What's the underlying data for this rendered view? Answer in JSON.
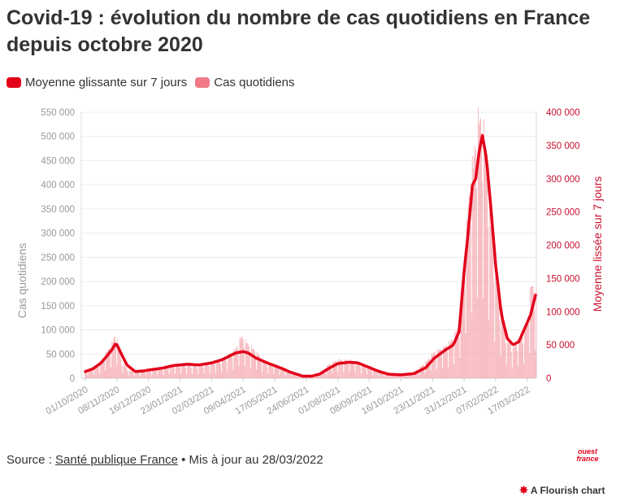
{
  "title": "Covid-19 : évolution du nombre de cas quotidiens en France depuis octobre 2020",
  "legend": {
    "items": [
      {
        "label": "Moyenne glissante sur 7 jours",
        "color": "#e2001a"
      },
      {
        "label": "Cas quotidiens",
        "color": "#f07a86"
      }
    ]
  },
  "footer": {
    "prefix": "Source : ",
    "source": "Santé publique France",
    "suffix": " • Mis à jour au 28/03/2022"
  },
  "brand": {
    "line1": "ouest",
    "line2": "france"
  },
  "flourish": {
    "label": "A Flourish chart"
  },
  "chart_data": {
    "type": "bar",
    "left_axis_label": "Cas quotidiens",
    "right_axis_label": "Moyenne lissée sur 7 jours",
    "y_left_range": [
      0,
      550000
    ],
    "y_left_ticks": [
      "0",
      "50 000",
      "100 000",
      "150 000",
      "200 000",
      "250 000",
      "300 000",
      "350 000",
      "400 000",
      "450 000",
      "500 000",
      "550 000"
    ],
    "y_left_tick_values": [
      0,
      50000,
      100000,
      150000,
      200000,
      250000,
      300000,
      350000,
      400000,
      450000,
      500000,
      550000
    ],
    "y_right_range": [
      0,
      400000
    ],
    "y_right_ticks": [
      "0",
      "50 000",
      "100 000",
      "150 000",
      "200 000",
      "250 000",
      "300 000",
      "350 000",
      "400 000"
    ],
    "y_right_tick_values": [
      0,
      50000,
      100000,
      150000,
      200000,
      250000,
      300000,
      350000,
      400000
    ],
    "x_range": [
      "2020-10-01",
      "2022-03-28"
    ],
    "x_ticks": [
      "01/10/2020",
      "08/11/2020",
      "16/12/2020",
      "23/01/2021",
      "02/03/2021",
      "09/04/2021",
      "17/05/2021",
      "24/06/2021",
      "01/08/2021",
      "08/09/2021",
      "16/10/2021",
      "23/11/2021",
      "31/12/2021",
      "07/02/2022",
      "17/03/2022"
    ],
    "x_tick_dates": [
      "2020-10-01",
      "2020-11-08",
      "2020-12-16",
      "2021-01-23",
      "2021-03-02",
      "2021-04-09",
      "2021-05-17",
      "2021-06-24",
      "2021-08-01",
      "2021-09-08",
      "2021-10-16",
      "2021-11-23",
      "2021-12-31",
      "2022-02-07",
      "2022-03-17"
    ],
    "grid": true,
    "legend_position": "top-left",
    "series": [
      {
        "name": "Cas quotidiens",
        "axis": "left",
        "type": "bar",
        "color": "#f4a1a9",
        "values_sampled": [
          [
            "2020-10-01",
            12000
          ],
          [
            "2020-10-10",
            20000
          ],
          [
            "2020-10-20",
            30000
          ],
          [
            "2020-10-25",
            45000
          ],
          [
            "2020-10-31",
            60000
          ],
          [
            "2020-11-03",
            70000
          ],
          [
            "2020-11-07",
            86000
          ],
          [
            "2020-11-14",
            30000
          ],
          [
            "2020-11-22",
            15000
          ],
          [
            "2020-12-01",
            11000
          ],
          [
            "2020-12-16",
            17000
          ],
          [
            "2021-01-01",
            20000
          ],
          [
            "2021-01-15",
            27000
          ],
          [
            "2021-02-01",
            25000
          ],
          [
            "2021-02-15",
            24000
          ],
          [
            "2021-03-02",
            30000
          ],
          [
            "2021-03-15",
            35000
          ],
          [
            "2021-03-31",
            55000
          ],
          [
            "2021-04-07",
            80000
          ],
          [
            "2021-04-15",
            65000
          ],
          [
            "2021-04-25",
            50000
          ],
          [
            "2021-05-05",
            30000
          ],
          [
            "2021-05-17",
            25000
          ],
          [
            "2021-06-01",
            15000
          ],
          [
            "2021-06-15",
            6000
          ],
          [
            "2021-06-30",
            3000
          ],
          [
            "2021-07-10",
            8000
          ],
          [
            "2021-07-20",
            25000
          ],
          [
            "2021-08-01",
            35000
          ],
          [
            "2021-08-15",
            35000
          ],
          [
            "2021-09-01",
            25000
          ],
          [
            "2021-09-15",
            15000
          ],
          [
            "2021-10-01",
            8000
          ],
          [
            "2021-10-16",
            8000
          ],
          [
            "2021-11-01",
            12000
          ],
          [
            "2021-11-15",
            30000
          ],
          [
            "2021-11-25",
            50000
          ],
          [
            "2021-12-08",
            60000
          ],
          [
            "2021-12-15",
            70000
          ],
          [
            "2021-12-25",
            100000
          ],
          [
            "2021-12-31",
            220000
          ],
          [
            "2022-01-05",
            330000
          ],
          [
            "2022-01-10",
            400000
          ],
          [
            "2022-01-18",
            500000
          ],
          [
            "2022-01-25",
            460000
          ],
          [
            "2022-02-01",
            300000
          ],
          [
            "2022-02-07",
            200000
          ],
          [
            "2022-02-14",
            120000
          ],
          [
            "2022-02-21",
            70000
          ],
          [
            "2022-03-01",
            60000
          ],
          [
            "2022-03-10",
            75000
          ],
          [
            "2022-03-17",
            100000
          ],
          [
            "2022-03-22",
            180000
          ],
          [
            "2022-03-28",
            160000
          ]
        ]
      },
      {
        "name": "Moyenne glissante sur 7 jours",
        "axis": "right",
        "type": "line",
        "color": "#e2001a",
        "values_sampled": [
          [
            "2020-10-01",
            10000
          ],
          [
            "2020-10-10",
            14000
          ],
          [
            "2020-10-20",
            23000
          ],
          [
            "2020-10-28",
            35000
          ],
          [
            "2020-11-02",
            43000
          ],
          [
            "2020-11-07",
            53000
          ],
          [
            "2020-11-12",
            40000
          ],
          [
            "2020-11-20",
            20000
          ],
          [
            "2020-11-30",
            10000
          ],
          [
            "2020-12-10",
            11000
          ],
          [
            "2020-12-20",
            13000
          ],
          [
            "2021-01-01",
            15000
          ],
          [
            "2021-01-15",
            19000
          ],
          [
            "2021-02-01",
            21000
          ],
          [
            "2021-02-15",
            20000
          ],
          [
            "2021-03-02",
            23000
          ],
          [
            "2021-03-15",
            28000
          ],
          [
            "2021-03-31",
            38000
          ],
          [
            "2021-04-09",
            40000
          ],
          [
            "2021-04-15",
            38000
          ],
          [
            "2021-04-25",
            30000
          ],
          [
            "2021-05-10",
            22000
          ],
          [
            "2021-05-25",
            15000
          ],
          [
            "2021-06-05",
            9000
          ],
          [
            "2021-06-20",
            3000
          ],
          [
            "2021-06-30",
            3000
          ],
          [
            "2021-07-10",
            6000
          ],
          [
            "2021-07-20",
            14000
          ],
          [
            "2021-08-01",
            22000
          ],
          [
            "2021-08-15",
            24000
          ],
          [
            "2021-08-25",
            23000
          ],
          [
            "2021-09-08",
            16000
          ],
          [
            "2021-09-20",
            10000
          ],
          [
            "2021-10-01",
            6000
          ],
          [
            "2021-10-16",
            5000
          ],
          [
            "2021-11-01",
            7000
          ],
          [
            "2021-11-15",
            16000
          ],
          [
            "2021-11-25",
            30000
          ],
          [
            "2021-12-08",
            42000
          ],
          [
            "2021-12-18",
            50000
          ],
          [
            "2021-12-25",
            70000
          ],
          [
            "2021-12-31",
            160000
          ],
          [
            "2022-01-05",
            220000
          ],
          [
            "2022-01-10",
            290000
          ],
          [
            "2022-01-14",
            300000
          ],
          [
            "2022-01-18",
            340000
          ],
          [
            "2022-01-22",
            365000
          ],
          [
            "2022-01-27",
            330000
          ],
          [
            "2022-02-01",
            260000
          ],
          [
            "2022-02-07",
            170000
          ],
          [
            "2022-02-14",
            95000
          ],
          [
            "2022-02-21",
            60000
          ],
          [
            "2022-02-28",
            50000
          ],
          [
            "2022-03-07",
            55000
          ],
          [
            "2022-03-14",
            75000
          ],
          [
            "2022-03-21",
            95000
          ],
          [
            "2022-03-28",
            130000
          ]
        ]
      }
    ]
  }
}
